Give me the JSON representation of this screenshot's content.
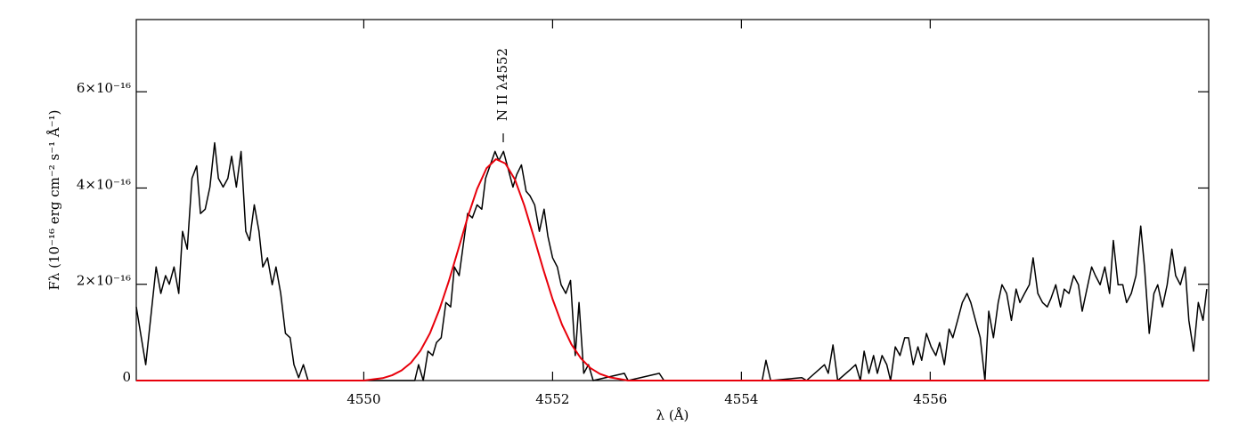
{
  "chart_data": {
    "type": "line",
    "xlabel": "λ (Å)",
    "ylabel": "Fλ (10⁻¹⁶ erg cm⁻² s⁻¹ Å⁻¹)",
    "annotation": "N II λ4552",
    "xlim": [
      4547.59,
      4558.95
    ],
    "ylim": [
      0,
      7.5e-16
    ],
    "xticks": [
      4550,
      4552,
      4554,
      4556
    ],
    "yticks": [
      0,
      {
        "value": 2e-16,
        "label": "2×10⁻¹⁶"
      },
      {
        "value": 4e-16,
        "label": "4×10⁻¹⁶"
      },
      {
        "value": 6e-16,
        "label": "6×10⁻¹⁶"
      }
    ],
    "series": [
      {
        "color": "#000000",
        "x": [
          4547.59,
          4547.69,
          4547.8,
          4547.85,
          4547.9,
          4547.94,
          4547.99,
          4548.04,
          4548.08,
          4548.13,
          4548.18,
          4548.23,
          4548.27,
          4548.32,
          4548.37,
          4548.42,
          4548.46,
          4548.51,
          4548.56,
          4548.6,
          4548.65,
          4548.7,
          4548.75,
          4548.79,
          4548.84,
          4548.89,
          4548.93,
          4548.98,
          4549.03,
          4549.07,
          4549.12,
          4549.17,
          4549.22,
          4549.26,
          4549.31,
          4549.36,
          4549.41,
          4550.54,
          4550.58,
          4550.63,
          4550.68,
          4550.73,
          4550.77,
          4550.82,
          4550.87,
          4550.92,
          4550.96,
          4551.01,
          4551.06,
          4551.1,
          4551.15,
          4551.2,
          4551.25,
          4551.29,
          4551.34,
          4551.39,
          4551.43,
          4551.48,
          4551.53,
          4551.58,
          4551.62,
          4551.67,
          4551.72,
          4551.76,
          4551.81,
          4551.86,
          4551.91,
          4551.95,
          4552.0,
          4552.05,
          4552.09,
          4552.14,
          4552.19,
          4552.24,
          4552.28,
          4552.33,
          4552.38,
          4552.43,
          4552.76,
          4552.8,
          4553.13,
          4553.18,
          4554.22,
          4554.26,
          4554.31,
          4554.64,
          4554.69,
          4554.88,
          4554.92,
          4554.97,
          4555.02,
          4555.16,
          4555.21,
          4555.26,
          4555.3,
          4555.35,
          4555.4,
          4555.44,
          4555.49,
          4555.54,
          4555.58,
          4555.63,
          4555.68,
          4555.73,
          4555.77,
          4555.82,
          4555.87,
          4555.91,
          4555.96,
          4556.01,
          4556.06,
          4556.1,
          4556.15,
          4556.2,
          4556.24,
          4556.29,
          4556.34,
          4556.39,
          4556.43,
          4556.48,
          4556.53,
          4556.58,
          4556.62,
          4556.67,
          4556.72,
          4556.76,
          4556.81,
          4556.86,
          4556.91,
          4556.95,
          4557.0,
          4557.05,
          4557.09,
          4557.14,
          4557.19,
          4557.24,
          4557.28,
          4557.33,
          4557.38,
          4557.42,
          4557.47,
          4557.52,
          4557.57,
          4557.61,
          4557.66,
          4557.71,
          4557.75,
          4557.8,
          4557.85,
          4557.9,
          4557.94,
          4557.99,
          4558.04,
          4558.08,
          4558.13,
          4558.18,
          4558.23,
          4558.27,
          4558.32,
          4558.37,
          4558.41,
          4558.46,
          4558.51,
          4558.56,
          4558.6,
          4558.65,
          4558.7,
          4558.74,
          4558.79,
          4558.84,
          4558.89,
          4558.93
        ],
        "values": [
          1.53e-16,
          3.3e-17,
          2.36e-16,
          1.81e-16,
          2.18e-16,
          2e-16,
          2.36e-16,
          1.81e-16,
          3.1e-16,
          2.73e-16,
          4.2e-16,
          4.46e-16,
          3.47e-16,
          3.56e-16,
          4.02e-16,
          4.94e-16,
          4.2e-16,
          4.02e-16,
          4.2e-16,
          4.66e-16,
          4.02e-16,
          4.76e-16,
          3.1e-16,
          2.91e-16,
          3.65e-16,
          3.1e-16,
          2.36e-16,
          2.55e-16,
          1.99e-16,
          2.36e-16,
          1.81e-16,
          9.8e-17,
          8.9e-17,
          3.3e-17,
          6e-18,
          3.3e-17,
          0,
          0,
          3.3e-17,
          0,
          6.1e-17,
          5.2e-17,
          7.9e-17,
          8.9e-17,
          1.62e-16,
          1.53e-16,
          2.36e-16,
          2.18e-16,
          2.91e-16,
          3.47e-16,
          3.38e-16,
          3.65e-16,
          3.56e-16,
          4.2e-16,
          4.48e-16,
          4.76e-16,
          4.57e-16,
          4.76e-16,
          4.39e-16,
          4.02e-16,
          4.28e-16,
          4.48e-16,
          3.93e-16,
          3.84e-16,
          3.65e-16,
          3.1e-16,
          3.56e-16,
          3e-16,
          2.55e-16,
          2.36e-16,
          1.99e-16,
          1.81e-16,
          2.08e-16,
          5.2e-17,
          1.62e-16,
          1.5e-17,
          3.3e-17,
          0,
          1.5e-17,
          0,
          1.5e-17,
          0,
          0,
          4.2e-17,
          0,
          6e-18,
          0,
          3.3e-17,
          1.5e-17,
          7.4e-17,
          0,
          2.4e-17,
          3.3e-17,
          0,
          6.1e-17,
          1.5e-17,
          5.2e-17,
          1.5e-17,
          5.2e-17,
          3.3e-17,
          0,
          7e-17,
          5.2e-17,
          8.9e-17,
          8.9e-17,
          3.3e-17,
          7e-17,
          4.2e-17,
          9.8e-17,
          7e-17,
          5.2e-17,
          7.9e-17,
          3.3e-17,
          1.07e-16,
          8.9e-17,
          1.25e-16,
          1.62e-16,
          1.81e-16,
          1.62e-16,
          1.25e-16,
          8.9e-17,
          0,
          1.44e-16,
          8.9e-17,
          1.62e-16,
          1.99e-16,
          1.81e-16,
          1.25e-16,
          1.9e-16,
          1.62e-16,
          1.81e-16,
          1.99e-16,
          2.55e-16,
          1.81e-16,
          1.62e-16,
          1.53e-16,
          1.71e-16,
          1.99e-16,
          1.53e-16,
          1.9e-16,
          1.81e-16,
          2.18e-16,
          1.99e-16,
          1.44e-16,
          1.9e-16,
          2.36e-16,
          2.18e-16,
          1.99e-16,
          2.36e-16,
          1.81e-16,
          2.91e-16,
          1.99e-16,
          1.99e-16,
          1.62e-16,
          1.81e-16,
          2.18e-16,
          3.21e-16,
          2.36e-16,
          9.8e-17,
          1.81e-16,
          1.99e-16,
          1.53e-16,
          1.99e-16,
          2.73e-16,
          2.18e-16,
          1.99e-16,
          2.36e-16,
          1.25e-16,
          6.1e-17,
          1.62e-16,
          1.25e-16,
          1.9e-16
        ]
      },
      {
        "color": "#e8000b",
        "x": [
          4547.59,
          4550.0,
          4550.2,
          4550.3,
          4550.4,
          4550.5,
          4550.6,
          4550.7,
          4550.8,
          4550.9,
          4551.0,
          4551.1,
          4551.2,
          4551.3,
          4551.4,
          4551.5,
          4551.6,
          4551.7,
          4551.8,
          4551.9,
          4552.0,
          4552.1,
          4552.2,
          4552.3,
          4552.4,
          4552.5,
          4552.6,
          4552.8,
          4558.95
        ],
        "values": [
          0,
          0,
          5e-18,
          1.1e-17,
          2.1e-17,
          3.7e-17,
          6.2e-17,
          9.8e-17,
          1.47e-16,
          2.06e-16,
          2.72e-16,
          3.39e-16,
          3.98e-16,
          4.41e-16,
          4.6e-16,
          4.51e-16,
          4.18e-16,
          3.64e-16,
          2.99e-16,
          2.32e-16,
          1.69e-16,
          1.16e-16,
          7.5e-17,
          4.6e-17,
          2.6e-17,
          1.4e-17,
          7e-18,
          0,
          0
        ]
      }
    ]
  }
}
